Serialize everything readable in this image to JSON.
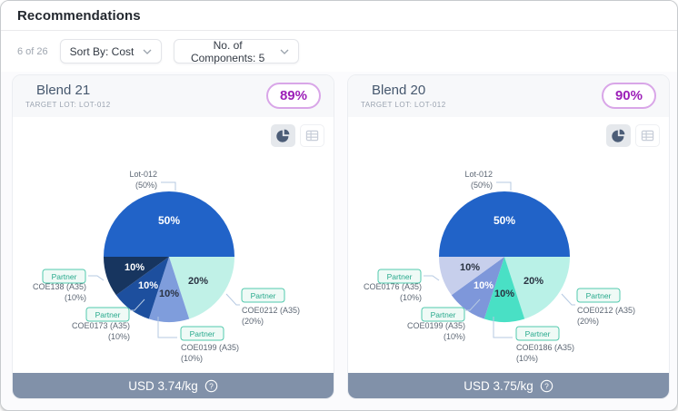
{
  "header": {
    "title": "Recommendations"
  },
  "toolbar": {
    "count": "6 of 26",
    "sort_label": "Sort By: Cost",
    "components_label": "No. of Components: 5"
  },
  "cards": [
    {
      "title": "Blend 21",
      "target_lot": "TARGET LOT: LOT-012",
      "match": "89%",
      "price": "USD 3.74/kg"
    },
    {
      "title": "Blend 20",
      "target_lot": "TARGET LOT: LOT-012",
      "match": "90%",
      "price": "USD 3.75/kg"
    }
  ],
  "chart_data": [
    {
      "type": "pie",
      "title": "Blend 21 composition",
      "unit": "%",
      "slices": [
        {
          "label": "Lot-012",
          "value": 50,
          "badge": null,
          "color": "#2163c8",
          "pct_color": "#ffffff"
        },
        {
          "label": "COE0212 (A35)",
          "value": 20,
          "badge": "Partner",
          "color": "#c0f1e7",
          "pct_color": "#2a3342"
        },
        {
          "label": "COE0199 (A35)",
          "value": 10,
          "badge": "Partner",
          "color": "#7f9ddc",
          "pct_color": "#2a3342"
        },
        {
          "label": "COE0173 (A35)",
          "value": 10,
          "badge": "Partner",
          "color": "#1d4f9e",
          "pct_color": "#ffffff"
        },
        {
          "label": "COE138 (A35)",
          "value": 10,
          "badge": "Partner",
          "color": "#17355f",
          "pct_color": "#ffffff"
        }
      ]
    },
    {
      "type": "pie",
      "title": "Blend 20 composition",
      "unit": "%",
      "slices": [
        {
          "label": "Lot-012",
          "value": 50,
          "badge": null,
          "color": "#2163c8",
          "pct_color": "#ffffff"
        },
        {
          "label": "COE0212 (A35)",
          "value": 20,
          "badge": "Partner",
          "color": "#b9f1e7",
          "pct_color": "#2a3342"
        },
        {
          "label": "COE0186 (A35)",
          "value": 10,
          "badge": "Partner",
          "color": "#49e0c5",
          "pct_color": "#2a3342"
        },
        {
          "label": "COE0199 (A35)",
          "value": 10,
          "badge": "Partner",
          "color": "#7e97da",
          "pct_color": "#ffffff"
        },
        {
          "label": "COE0176 (A35)",
          "value": 10,
          "badge": "Partner",
          "color": "#c7cfec",
          "pct_color": "#2a3342"
        }
      ]
    }
  ],
  "colors": {
    "match_badge_text": "#9c1fb8",
    "match_badge_border": "#d9a6e8",
    "footer_bar": "#8191a9",
    "partner_chip_text": "#27a98c",
    "partner_chip_border": "#52c9ad",
    "callout_line": "#b5c9e2"
  }
}
